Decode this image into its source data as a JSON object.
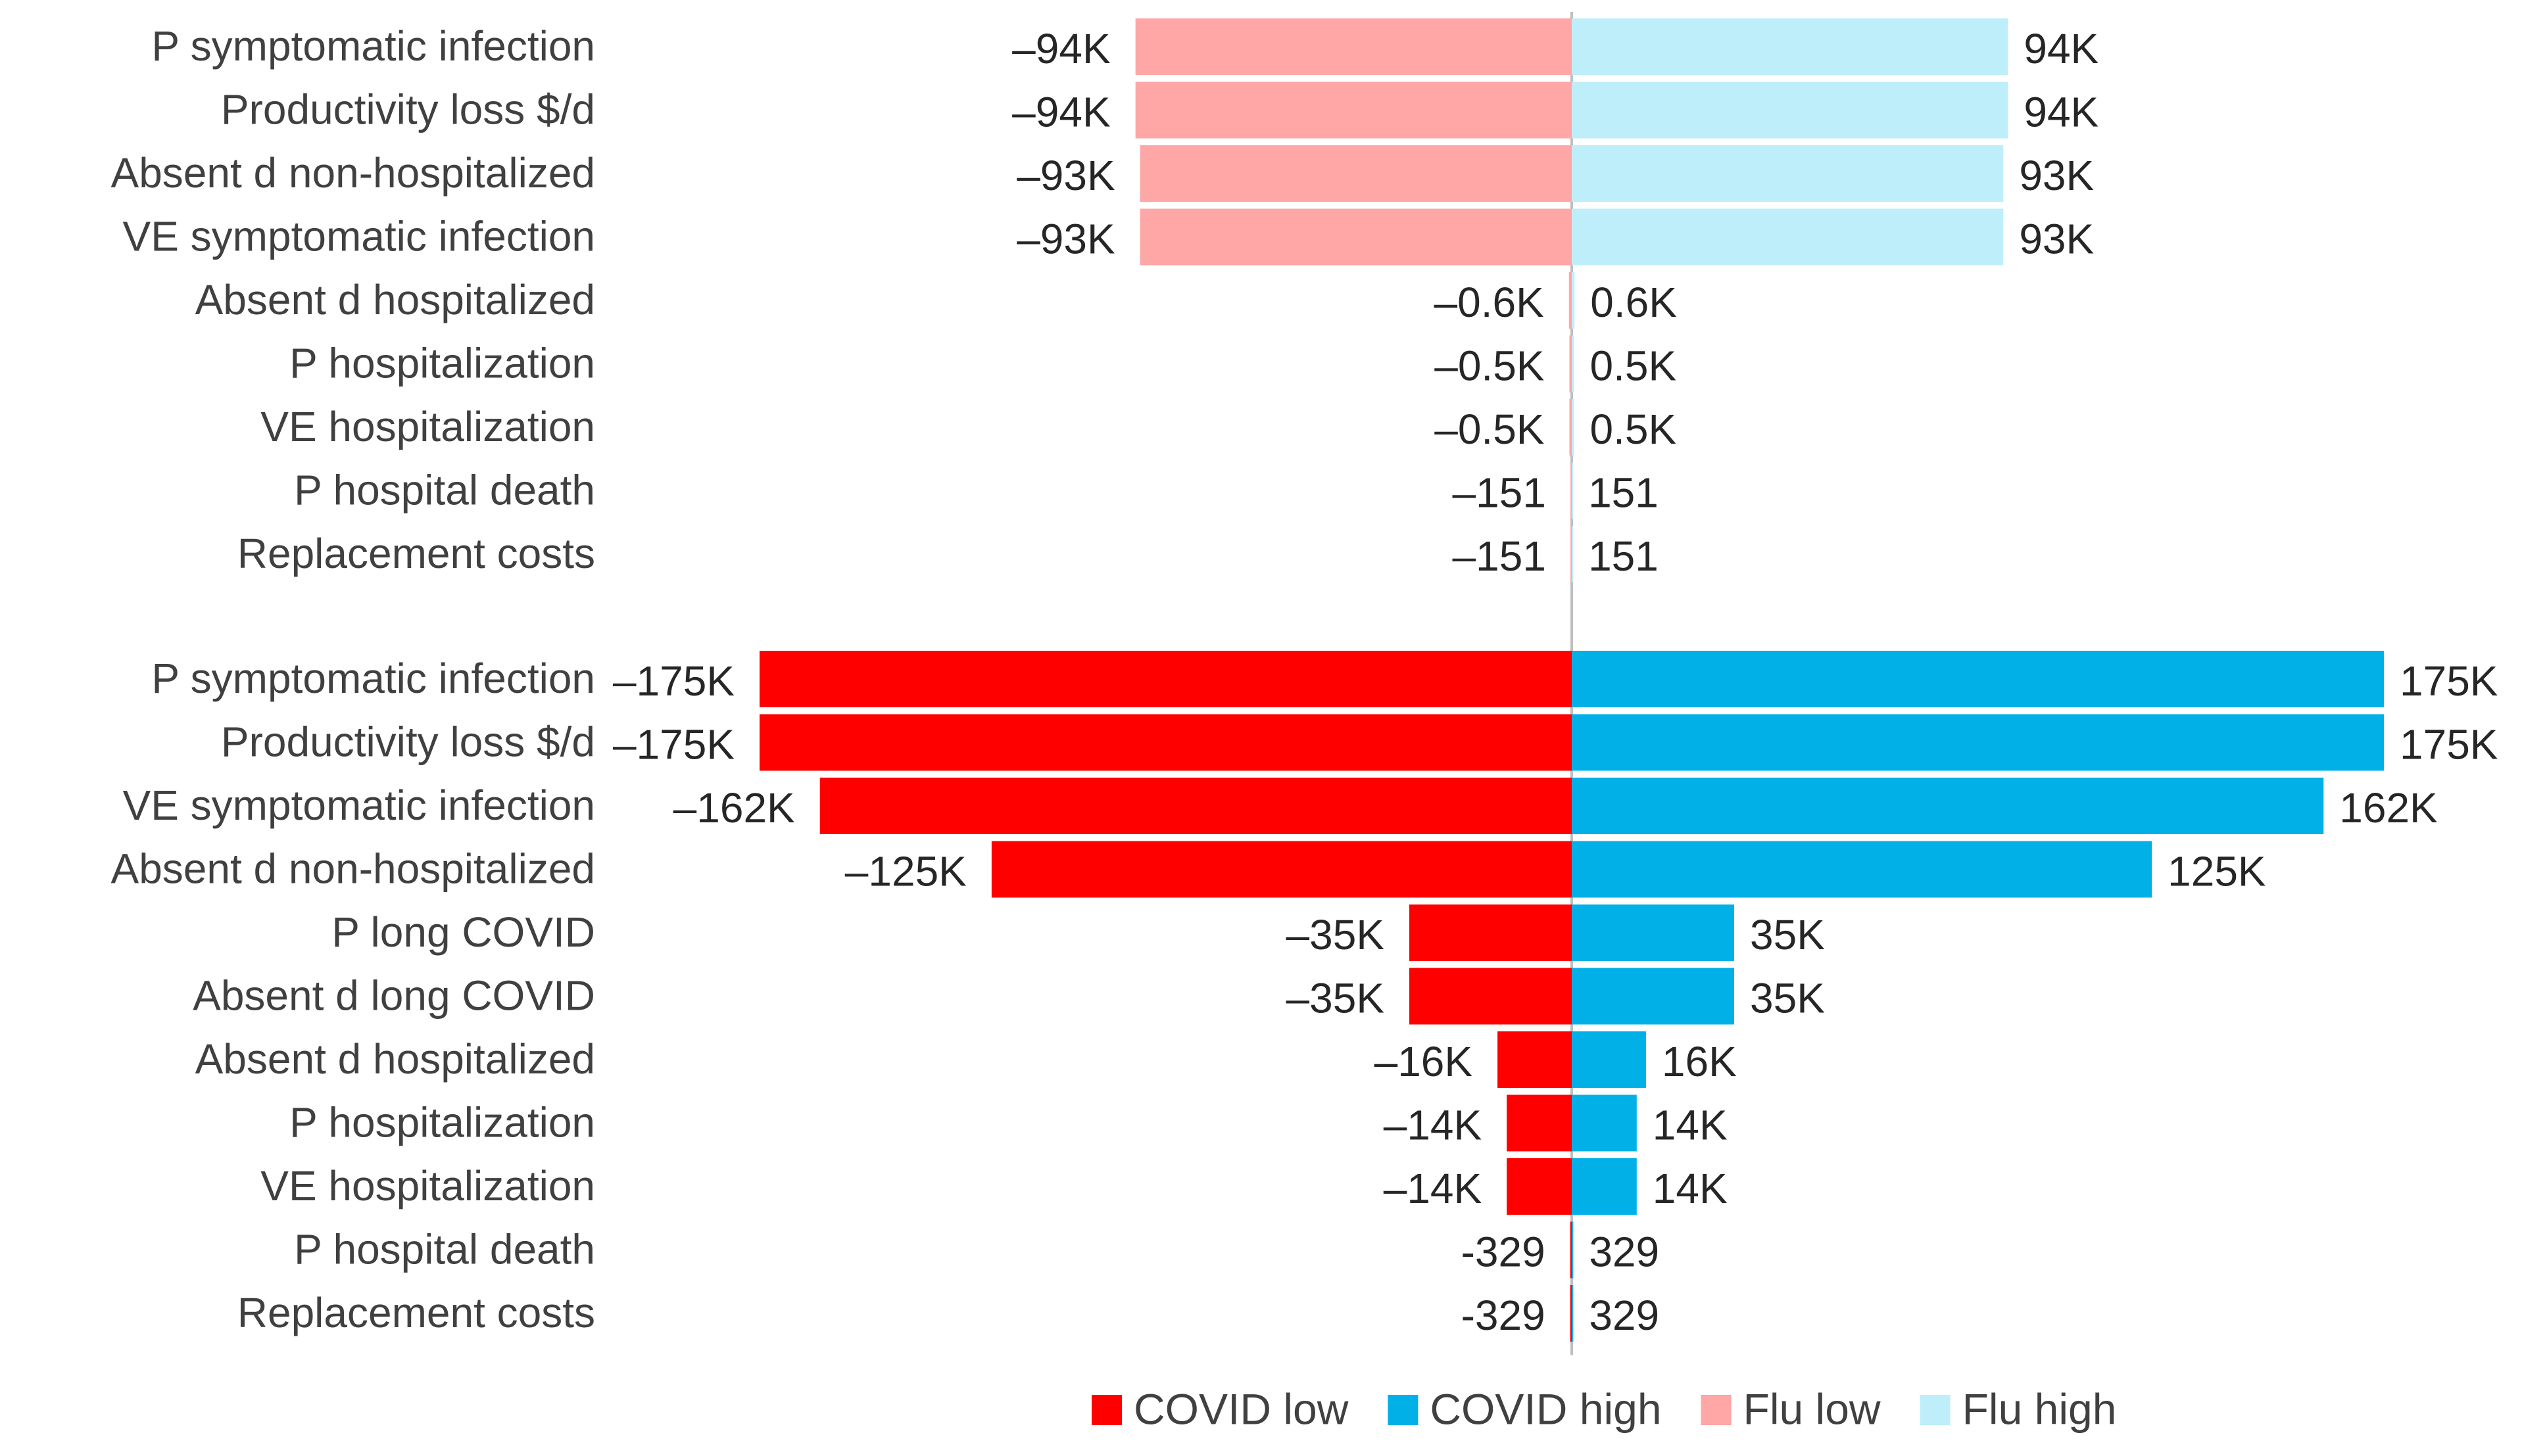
{
  "chart_data": {
    "type": "tornado",
    "title": "",
    "colors": {
      "covid_low": "#ff0000",
      "covid_high": "#00b0e6",
      "flu_low": "#ffa6a6",
      "flu_high": "#bfeefb",
      "axis": "#bfbfbf"
    },
    "legend": [
      {
        "name": "COVID low",
        "color_key": "covid_low"
      },
      {
        "name": "COVID high",
        "color_key": "covid_high"
      },
      {
        "name": "Flu low",
        "color_key": "flu_low"
      },
      {
        "name": "Flu high",
        "color_key": "flu_high"
      }
    ],
    "legend_position": "bottom",
    "groups": [
      {
        "name": "Flu",
        "low_color_key": "flu_low",
        "high_color_key": "flu_high",
        "rows": [
          {
            "parameter": "P symptomatic infection",
            "low": -94000,
            "high": 94000,
            "low_label": "–94K",
            "high_label": "94K"
          },
          {
            "parameter": "Productivity loss $/d",
            "low": -94000,
            "high": 94000,
            "low_label": "–94K",
            "high_label": "94K"
          },
          {
            "parameter": "Absent d non-hospitalized",
            "low": -93000,
            "high": 93000,
            "low_label": "–93K",
            "high_label": "93K"
          },
          {
            "parameter": "VE symptomatic infection",
            "low": -93000,
            "high": 93000,
            "low_label": "–93K",
            "high_label": "93K"
          },
          {
            "parameter": "Absent d hospitalized",
            "low": -600,
            "high": 600,
            "low_label": "–0.6K",
            "high_label": "0.6K"
          },
          {
            "parameter": "P hospitalization",
            "low": -500,
            "high": 500,
            "low_label": "–0.5K",
            "high_label": "0.5K"
          },
          {
            "parameter": "VE hospitalization",
            "low": -500,
            "high": 500,
            "low_label": "–0.5K",
            "high_label": "0.5K"
          },
          {
            "parameter": "P hospital death",
            "low": -151,
            "high": 151,
            "low_label": "–151",
            "high_label": "151"
          },
          {
            "parameter": "Replacement costs",
            "low": -151,
            "high": 151,
            "low_label": "–151",
            "high_label": "151"
          }
        ]
      },
      {
        "name": "COVID",
        "low_color_key": "covid_low",
        "high_color_key": "covid_high",
        "rows": [
          {
            "parameter": "P symptomatic infection",
            "low": -175000,
            "high": 175000,
            "low_label": "–175K",
            "high_label": "175K"
          },
          {
            "parameter": "Productivity loss $/d",
            "low": -175000,
            "high": 175000,
            "low_label": "–175K",
            "high_label": "175K"
          },
          {
            "parameter": "VE symptomatic infection",
            "low": -162000,
            "high": 162000,
            "low_label": "–162K",
            "high_label": "162K"
          },
          {
            "parameter": "Absent d non-hospitalized",
            "low": -125000,
            "high": 125000,
            "low_label": "–125K",
            "high_label": "125K"
          },
          {
            "parameter": "P long COVID",
            "low": -35000,
            "high": 35000,
            "low_label": "–35K",
            "high_label": "35K"
          },
          {
            "parameter": "Absent d long COVID",
            "low": -35000,
            "high": 35000,
            "low_label": "–35K",
            "high_label": "35K"
          },
          {
            "parameter": "Absent d hospitalized",
            "low": -16000,
            "high": 16000,
            "low_label": "–16K",
            "high_label": "16K"
          },
          {
            "parameter": "P hospitalization",
            "low": -14000,
            "high": 14000,
            "low_label": "–14K",
            "high_label": "14K"
          },
          {
            "parameter": "VE hospitalization",
            "low": -14000,
            "high": 14000,
            "low_label": "–14K",
            "high_label": "14K"
          },
          {
            "parameter": "P hospital death",
            "low": -329,
            "high": 329,
            "low_label": "-329",
            "high_label": "329"
          },
          {
            "parameter": "Replacement costs",
            "low": -329,
            "high": 329,
            "low_label": "-329",
            "high_label": "329"
          }
        ]
      }
    ],
    "x_range": [
      -175000,
      175000
    ]
  }
}
